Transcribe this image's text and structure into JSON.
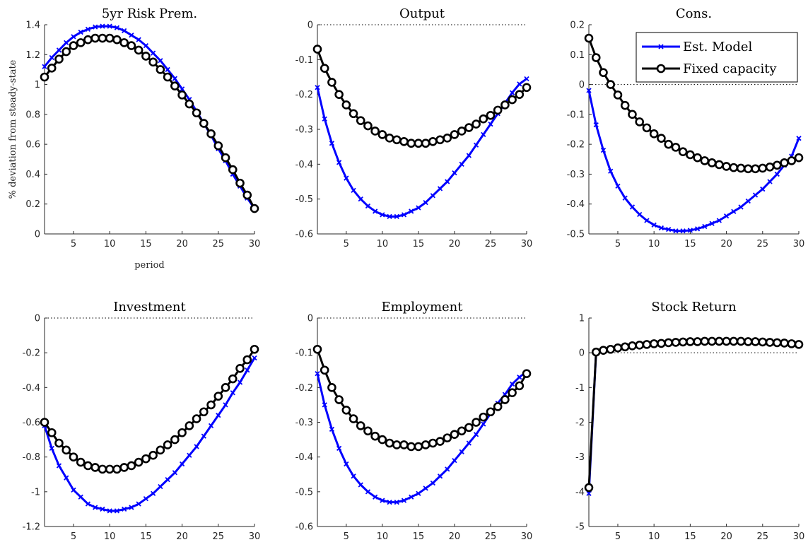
{
  "chart_data": [
    {
      "type": "line",
      "title": "5yr Risk Prem.",
      "xlabel": "period",
      "ylabel": "% deviation from steady-state",
      "xlim": [
        1,
        30
      ],
      "ylim": [
        0,
        1.4
      ],
      "xticks": [
        5,
        10,
        15,
        20,
        25,
        30
      ],
      "yticks": [
        0,
        0.2,
        0.4,
        0.6,
        0.8,
        1,
        1.2,
        1.4
      ],
      "ytick_labels": [
        "0",
        "0.2",
        "0.4",
        "0.6",
        "0.8",
        "1",
        "1.2",
        "1.4"
      ],
      "zero_line": true,
      "x": [
        1,
        2,
        3,
        4,
        5,
        6,
        7,
        8,
        9,
        10,
        11,
        12,
        13,
        14,
        15,
        16,
        17,
        18,
        19,
        20,
        21,
        22,
        23,
        24,
        25,
        26,
        27,
        28,
        29,
        30
      ],
      "series": [
        {
          "values": [
            1.12,
            1.18,
            1.23,
            1.28,
            1.32,
            1.35,
            1.37,
            1.385,
            1.39,
            1.39,
            1.38,
            1.36,
            1.33,
            1.3,
            1.26,
            1.21,
            1.16,
            1.1,
            1.04,
            0.97,
            0.9,
            0.82,
            0.74,
            0.66,
            0.57,
            0.49,
            0.4,
            0.32,
            0.24,
            0.17
          ]
        },
        {
          "values": [
            1.05,
            1.11,
            1.17,
            1.22,
            1.26,
            1.28,
            1.3,
            1.31,
            1.31,
            1.31,
            1.3,
            1.28,
            1.26,
            1.23,
            1.19,
            1.15,
            1.1,
            1.05,
            0.99,
            0.93,
            0.87,
            0.81,
            0.74,
            0.67,
            0.59,
            0.51,
            0.43,
            0.34,
            0.26,
            0.17
          ]
        }
      ]
    },
    {
      "type": "line",
      "title": "Output",
      "xlim": [
        1,
        30
      ],
      "ylim": [
        -0.6,
        0
      ],
      "xticks": [
        5,
        10,
        15,
        20,
        25,
        30
      ],
      "yticks": [
        -0.6,
        -0.5,
        -0.4,
        -0.3,
        -0.2,
        -0.1,
        0
      ],
      "ytick_labels": [
        "-0.6",
        "-0.5",
        "-0.4",
        "-0.3",
        "-0.2",
        "-0.1",
        "0"
      ],
      "zero_line": true,
      "x": [
        1,
        2,
        3,
        4,
        5,
        6,
        7,
        8,
        9,
        10,
        11,
        12,
        13,
        14,
        15,
        16,
        17,
        18,
        19,
        20,
        21,
        22,
        23,
        24,
        25,
        26,
        27,
        28,
        29,
        30
      ],
      "series": [
        {
          "values": [
            -0.18,
            -0.27,
            -0.34,
            -0.395,
            -0.44,
            -0.475,
            -0.5,
            -0.52,
            -0.535,
            -0.545,
            -0.55,
            -0.55,
            -0.545,
            -0.535,
            -0.525,
            -0.51,
            -0.49,
            -0.47,
            -0.45,
            -0.425,
            -0.4,
            -0.375,
            -0.345,
            -0.315,
            -0.285,
            -0.255,
            -0.225,
            -0.195,
            -0.17,
            -0.155
          ]
        },
        {
          "values": [
            -0.07,
            -0.125,
            -0.165,
            -0.2,
            -0.23,
            -0.255,
            -0.275,
            -0.29,
            -0.305,
            -0.315,
            -0.325,
            -0.33,
            -0.335,
            -0.34,
            -0.34,
            -0.34,
            -0.335,
            -0.33,
            -0.325,
            -0.315,
            -0.305,
            -0.295,
            -0.285,
            -0.27,
            -0.26,
            -0.245,
            -0.23,
            -0.215,
            -0.2,
            -0.18
          ]
        }
      ]
    },
    {
      "type": "line",
      "title": "Cons.",
      "xlim": [
        1,
        30
      ],
      "ylim": [
        -0.5,
        0.2
      ],
      "xticks": [
        5,
        10,
        15,
        20,
        25,
        30
      ],
      "yticks": [
        -0.5,
        -0.4,
        -0.3,
        -0.2,
        -0.1,
        0,
        0.1,
        0.2
      ],
      "ytick_labels": [
        "-0.5",
        "-0.4",
        "-0.3",
        "-0.2",
        "-0.1",
        "0",
        "0.1",
        "0.2"
      ],
      "zero_line": true,
      "legend": {
        "entries": [
          "Est. Model",
          "Fixed capacity"
        ],
        "placement": "top-right"
      },
      "x": [
        1,
        2,
        3,
        4,
        5,
        6,
        7,
        8,
        9,
        10,
        11,
        12,
        13,
        14,
        15,
        16,
        17,
        18,
        19,
        20,
        21,
        22,
        23,
        24,
        25,
        26,
        27,
        28,
        29,
        30
      ],
      "series": [
        {
          "name": "Est. Model",
          "values": [
            -0.02,
            -0.135,
            -0.22,
            -0.29,
            -0.34,
            -0.38,
            -0.41,
            -0.435,
            -0.455,
            -0.47,
            -0.48,
            -0.485,
            -0.49,
            -0.49,
            -0.488,
            -0.483,
            -0.475,
            -0.465,
            -0.455,
            -0.44,
            -0.425,
            -0.41,
            -0.39,
            -0.37,
            -0.35,
            -0.325,
            -0.3,
            -0.27,
            -0.24,
            -0.18
          ]
        },
        {
          "name": "Fixed capacity",
          "values": [
            0.155,
            0.09,
            0.04,
            0.0,
            -0.035,
            -0.07,
            -0.1,
            -0.125,
            -0.145,
            -0.165,
            -0.18,
            -0.2,
            -0.21,
            -0.225,
            -0.235,
            -0.245,
            -0.255,
            -0.262,
            -0.268,
            -0.274,
            -0.278,
            -0.28,
            -0.282,
            -0.282,
            -0.28,
            -0.276,
            -0.27,
            -0.262,
            -0.255,
            -0.245
          ]
        }
      ]
    },
    {
      "type": "line",
      "title": "Investment",
      "xlim": [
        1,
        30
      ],
      "ylim": [
        -1.2,
        0
      ],
      "xticks": [
        5,
        10,
        15,
        20,
        25,
        30
      ],
      "yticks": [
        -1.2,
        -1,
        -0.8,
        -0.6,
        -0.4,
        -0.2,
        0
      ],
      "ytick_labels": [
        "-1.2",
        "-1",
        "-0.8",
        "-0.6",
        "-0.4",
        "-0.2",
        "0"
      ],
      "zero_line": true,
      "x": [
        1,
        2,
        3,
        4,
        5,
        6,
        7,
        8,
        9,
        10,
        11,
        12,
        13,
        14,
        15,
        16,
        17,
        18,
        19,
        20,
        21,
        22,
        23,
        24,
        25,
        26,
        27,
        28,
        29,
        30
      ],
      "series": [
        {
          "values": [
            -0.62,
            -0.75,
            -0.85,
            -0.92,
            -0.99,
            -1.03,
            -1.07,
            -1.09,
            -1.1,
            -1.11,
            -1.11,
            -1.1,
            -1.09,
            -1.07,
            -1.04,
            -1.01,
            -0.97,
            -0.93,
            -0.89,
            -0.84,
            -0.79,
            -0.74,
            -0.68,
            -0.62,
            -0.56,
            -0.5,
            -0.43,
            -0.37,
            -0.3,
            -0.23
          ]
        },
        {
          "values": [
            -0.6,
            -0.66,
            -0.72,
            -0.76,
            -0.8,
            -0.83,
            -0.85,
            -0.86,
            -0.87,
            -0.87,
            -0.87,
            -0.86,
            -0.85,
            -0.83,
            -0.81,
            -0.79,
            -0.76,
            -0.73,
            -0.7,
            -0.66,
            -0.62,
            -0.58,
            -0.54,
            -0.5,
            -0.45,
            -0.4,
            -0.35,
            -0.29,
            -0.24,
            -0.18
          ]
        }
      ]
    },
    {
      "type": "line",
      "title": "Employment",
      "xlim": [
        1,
        30
      ],
      "ylim": [
        -0.6,
        0
      ],
      "xticks": [
        5,
        10,
        15,
        20,
        25,
        30
      ],
      "yticks": [
        -0.6,
        -0.5,
        -0.4,
        -0.3,
        -0.2,
        -0.1,
        0
      ],
      "ytick_labels": [
        "-0.6",
        "-0.5",
        "-0.4",
        "-0.3",
        "-0.2",
        "-0.1",
        "0"
      ],
      "zero_line": true,
      "x": [
        1,
        2,
        3,
        4,
        5,
        6,
        7,
        8,
        9,
        10,
        11,
        12,
        13,
        14,
        15,
        16,
        17,
        18,
        19,
        20,
        21,
        22,
        23,
        24,
        25,
        26,
        27,
        28,
        29,
        30
      ],
      "series": [
        {
          "values": [
            -0.16,
            -0.25,
            -0.32,
            -0.375,
            -0.42,
            -0.455,
            -0.48,
            -0.5,
            -0.515,
            -0.525,
            -0.53,
            -0.53,
            -0.525,
            -0.515,
            -0.505,
            -0.49,
            -0.475,
            -0.455,
            -0.435,
            -0.41,
            -0.385,
            -0.36,
            -0.335,
            -0.305,
            -0.275,
            -0.245,
            -0.22,
            -0.19,
            -0.17,
            -0.155
          ]
        },
        {
          "values": [
            -0.09,
            -0.15,
            -0.2,
            -0.235,
            -0.265,
            -0.29,
            -0.31,
            -0.325,
            -0.34,
            -0.35,
            -0.36,
            -0.365,
            -0.365,
            -0.37,
            -0.37,
            -0.365,
            -0.36,
            -0.355,
            -0.345,
            -0.335,
            -0.325,
            -0.315,
            -0.3,
            -0.285,
            -0.27,
            -0.255,
            -0.235,
            -0.215,
            -0.195,
            -0.16
          ]
        }
      ]
    },
    {
      "type": "line",
      "title": "Stock Return",
      "xlim": [
        1,
        30
      ],
      "ylim": [
        -5,
        1
      ],
      "xticks": [
        5,
        10,
        15,
        20,
        25,
        30
      ],
      "yticks": [
        -5,
        -4,
        -3,
        -2,
        -1,
        0,
        1
      ],
      "ytick_labels": [
        "-5",
        "-4",
        "-3",
        "-2",
        "-1",
        "0",
        "1"
      ],
      "zero_line": true,
      "x": [
        1,
        2,
        3,
        4,
        5,
        6,
        7,
        8,
        9,
        10,
        11,
        12,
        13,
        14,
        15,
        16,
        17,
        18,
        19,
        20,
        21,
        22,
        23,
        24,
        25,
        26,
        27,
        28,
        29,
        30
      ],
      "series": [
        {
          "values": [
            -4.05,
            0.02,
            0.07,
            0.1,
            0.14,
            0.17,
            0.2,
            0.22,
            0.24,
            0.26,
            0.27,
            0.29,
            0.3,
            0.31,
            0.32,
            0.32,
            0.33,
            0.33,
            0.33,
            0.33,
            0.33,
            0.33,
            0.32,
            0.32,
            0.31,
            0.3,
            0.29,
            0.28,
            0.26,
            0.24
          ]
        },
        {
          "values": [
            -3.88,
            0.02,
            0.07,
            0.1,
            0.14,
            0.17,
            0.2,
            0.22,
            0.24,
            0.26,
            0.27,
            0.29,
            0.3,
            0.31,
            0.32,
            0.32,
            0.33,
            0.33,
            0.33,
            0.33,
            0.33,
            0.33,
            0.32,
            0.32,
            0.31,
            0.3,
            0.29,
            0.28,
            0.26,
            0.24
          ]
        }
      ]
    }
  ],
  "colors": {
    "series_1": "#0000ff",
    "series_2": "#000000",
    "marker_face_2": "#ffffff"
  }
}
